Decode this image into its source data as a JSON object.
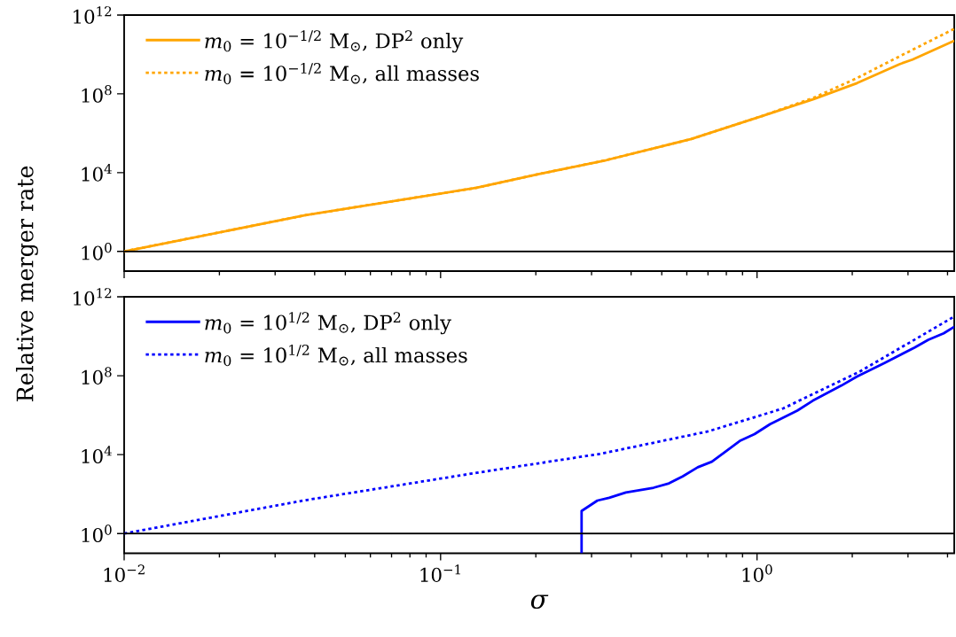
{
  "chart_data": [
    {
      "type": "line",
      "ylabel": "Relative merger rate",
      "log": "xy",
      "legend": "top left",
      "tick_labels": "y",
      "xlim": [
        0.01,
        4.2
      ],
      "xticks": [
        {
          "value": 0.01,
          "label": null
        },
        {
          "value": 0.1,
          "label": null
        },
        {
          "value": 1,
          "label": null
        }
      ],
      "ylim": [
        0.1,
        1000000000000
      ],
      "yticks": [
        {
          "value": 1,
          "label": "10$^{0}$"
        },
        {
          "value": 10000,
          "label": "10$^{4}$"
        },
        {
          "value": 100000000,
          "label": "10$^{8}$"
        },
        {
          "value": 1000000000000,
          "label": "10$^{12}$"
        }
      ],
      "ref_lines": [
        {
          "axis": "y",
          "value": 1,
          "color": "#000000"
        }
      ],
      "series": [
        {
          "name": "*m*$_{0}$ = 10$^{−1/2}$ M$_{⊙}$, DP$^{2}$ only",
          "color": "#ffa500",
          "line_style": "solid",
          "x": [
            0.01,
            0.0374,
            0.13,
            0.205,
            0.334,
            0.62,
            1.04,
            1.51,
            2.07,
            2.82,
            3.1,
            4.2
          ],
          "values": [
            1,
            69,
            1700,
            8500,
            43000,
            510000,
            7600000,
            54000000,
            350000000,
            3200000000,
            5500000000,
            50000000000
          ]
        },
        {
          "name": "*m*$_{0}$ = 10$^{−1/2}$ M$_{⊙}$, all masses",
          "color": "#ffa500",
          "line_style": "dotted",
          "x": [
            0.01,
            0.0374,
            0.13,
            0.205,
            0.334,
            0.62,
            1.04,
            1.51,
            2.07,
            2.82,
            4.2
          ],
          "values": [
            1,
            69,
            1700,
            8500,
            43000,
            510000,
            7600000,
            63000000,
            630000000,
            8000000000,
            200000000000
          ]
        }
      ]
    },
    {
      "type": "line",
      "xlabel": "*σ*",
      "log": "xy",
      "legend": "top left",
      "xlim": [
        0.01,
        4.2
      ],
      "xticks": [
        {
          "value": 0.01,
          "label": "10$^{−2}$"
        },
        {
          "value": 0.1,
          "label": "10$^{−1}$"
        },
        {
          "value": 1,
          "label": "10$^{0}$"
        }
      ],
      "ylim": [
        0.1,
        1000000000000
      ],
      "yticks": [
        {
          "value": 1,
          "label": "10$^{0}$"
        },
        {
          "value": 10000,
          "label": "10$^{4}$"
        },
        {
          "value": 100000000,
          "label": "10$^{8}$"
        },
        {
          "value": 1000000000000,
          "label": "10$^{12}$"
        }
      ],
      "ref_lines": [
        {
          "axis": "y",
          "value": 1,
          "color": "#000000"
        }
      ],
      "series": [
        {
          "name": "*m*$_{0}$ = 10$^{1/2}$ M$_{⊙}$, DP$^{2}$ only",
          "color": "#0000ff",
          "line_style": "solid",
          "x": [
            0.279,
            0.279,
            0.313,
            0.341,
            0.385,
            0.471,
            0.527,
            0.582,
            0.65,
            0.72,
            0.887,
            0.982,
            1.1,
            1.34,
            1.5,
            1.85,
            2.07,
            2.52,
            3.15,
            3.48,
            3.89,
            4.2
          ],
          "values": [
            0.1,
            14,
            47,
            65,
            120,
            210,
            350,
            790,
            2300,
            4400,
            52000,
            110000,
            350000,
            1700000,
            5400000,
            32000000,
            91000000,
            430000000,
            2700000000,
            6600000000,
            14000000000,
            30000000000
          ]
        },
        {
          "name": "*m*$_{0}$ = 10$^{1/2}$ M$_{⊙}$, all masses",
          "color": "#0000ff",
          "line_style": "dotted",
          "x": [
            0.01,
            0.0374,
            0.13,
            0.32,
            0.7,
            1.21,
            2.11,
            4.2
          ],
          "values": [
            1,
            49,
            1200,
            11000,
            150000,
            2200000,
            160000000,
            100000000000
          ]
        }
      ]
    }
  ]
}
